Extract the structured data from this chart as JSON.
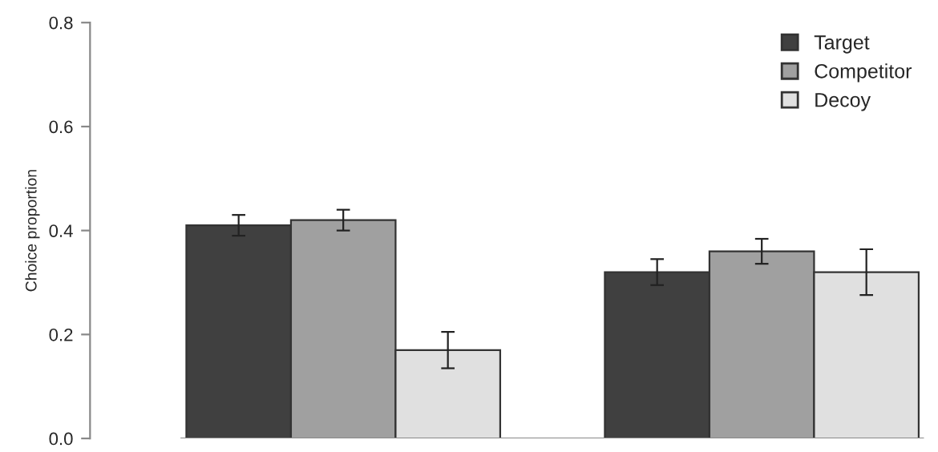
{
  "chart_data": {
    "type": "bar",
    "ylabel": "Choice proportion",
    "categories": [
      null,
      null
    ],
    "series": [
      {
        "name": "Target",
        "color": "#404040",
        "values": [
          0.41,
          0.32
        ],
        "errors": [
          0.02,
          0.025
        ]
      },
      {
        "name": "Competitor",
        "color": "#a0a0a0",
        "values": [
          0.42,
          0.36
        ],
        "errors": [
          0.02,
          0.024
        ]
      },
      {
        "name": "Decoy",
        "color": "#e0e0e0",
        "values": [
          0.17,
          0.32
        ],
        "errors": [
          0.035,
          0.044
        ]
      }
    ],
    "ylim": [
      0,
      0.8
    ],
    "yticks": [
      {
        "value": 0,
        "label": "0.0"
      },
      0.2,
      0.4,
      0.6,
      0.8
    ],
    "tick_labels": "y",
    "grid": false,
    "legend": "top right"
  }
}
